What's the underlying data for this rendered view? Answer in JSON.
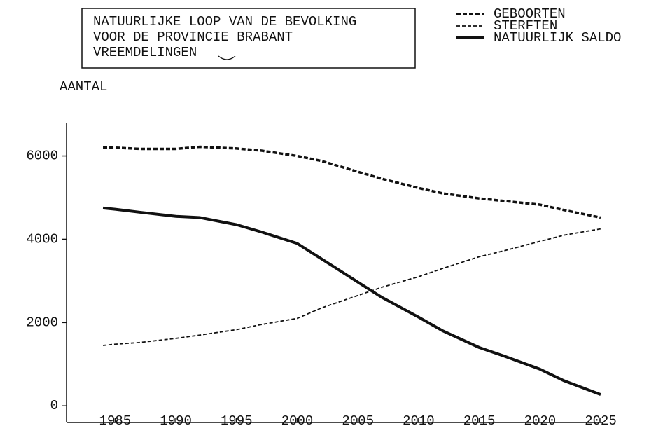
{
  "chart_data": {
    "type": "line",
    "title": [
      "NATUURLIJKE LOOP VAN DE BEVOLKING",
      "VOOR DE PROVINCIE BRABANT",
      "VREEMDELINGEN"
    ],
    "ylabel": "AANTAL",
    "x": [
      1984,
      1985,
      1987,
      1990,
      1992,
      1995,
      1997,
      2000,
      2002,
      2005,
      2007,
      2010,
      2012,
      2015,
      2017,
      2020,
      2022,
      2025
    ],
    "series": [
      {
        "name": "GEBOORTEN",
        "color": "#111111",
        "dash": "6 3",
        "width": 3.5,
        "values": [
          6200,
          6200,
          6170,
          6170,
          6220,
          6180,
          6130,
          6000,
          5880,
          5620,
          5450,
          5230,
          5100,
          4980,
          4920,
          4830,
          4700,
          4520
        ]
      },
      {
        "name": "STERFTEN",
        "color": "#111111",
        "dash": "5 3",
        "width": 1.8,
        "values": [
          1450,
          1480,
          1520,
          1620,
          1700,
          1830,
          1950,
          2100,
          2350,
          2650,
          2850,
          3100,
          3300,
          3580,
          3720,
          3950,
          4100,
          4250
        ]
      },
      {
        "name": "NATUURLIJK SALDO",
        "color": "#111111",
        "dash": "none",
        "width": 4,
        "values": [
          4750,
          4720,
          4650,
          4550,
          4520,
          4350,
          4180,
          3900,
          3530,
          2970,
          2600,
          2130,
          1800,
          1400,
          1200,
          880,
          600,
          270
        ]
      }
    ],
    "xlim": [
      1981,
      2025
    ],
    "xticks": [
      1985,
      1990,
      1995,
      2000,
      2005,
      2010,
      2015,
      2020,
      2025
    ],
    "ylim": [
      -400,
      6800
    ],
    "yticks": [
      0,
      2000,
      4000,
      6000
    ]
  }
}
